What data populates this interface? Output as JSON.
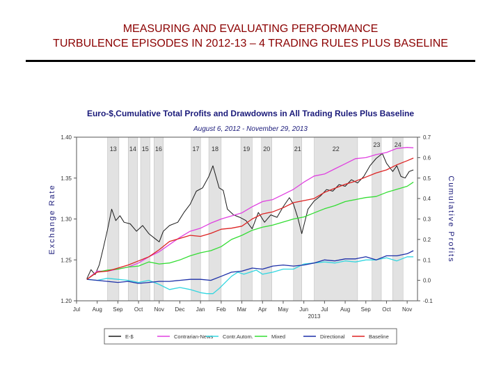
{
  "slide": {
    "title_line1": "MEASURING AND EVALUATING PERFORMANCE",
    "title_line2": "TURBULENCE EPISODES IN 2012-13 – 4 TRADING RULES PLUS BASELINE"
  },
  "chart_data": {
    "type": "line",
    "title": "Euro-$,Cumulative Total Profits and Drawdowns in All Trading Rules Plus Baseline",
    "subtitle": "August 6, 2012 - November 29, 2013",
    "ylabel": "Exchange Rate",
    "y2label": "Cumulative Profits",
    "ylim": [
      1.2,
      1.4
    ],
    "y2lim": [
      -0.1,
      0.7
    ],
    "yticks": [
      "1.20",
      "1.25",
      "1.30",
      "1.35",
      "1.40"
    ],
    "y2ticks": [
      "-0.1",
      "0.0",
      "0.1",
      "0.2",
      "0.3",
      "0.4",
      "0.5",
      "0.6",
      "0.7"
    ],
    "xlim": [
      0,
      16.5
    ],
    "xticks": [
      {
        "x": 0,
        "label": "Jul"
      },
      {
        "x": 1,
        "label": "Aug"
      },
      {
        "x": 2,
        "label": "Sep"
      },
      {
        "x": 3,
        "label": "Oct"
      },
      {
        "x": 4,
        "label": "Nov"
      },
      {
        "x": 5,
        "label": "Dec"
      },
      {
        "x": 6,
        "label": "Jan"
      },
      {
        "x": 7,
        "label": "Feb"
      },
      {
        "x": 8,
        "label": "Mar"
      },
      {
        "x": 9,
        "label": "Apr"
      },
      {
        "x": 10,
        "label": "May"
      },
      {
        "x": 11,
        "label": "Jun"
      },
      {
        "x": 12,
        "label": "Jul"
      },
      {
        "x": 13,
        "label": "Aug"
      },
      {
        "x": 14,
        "label": "Sep"
      },
      {
        "x": 15,
        "label": "Oct"
      },
      {
        "x": 16,
        "label": "Nov"
      }
    ],
    "year_label": {
      "x": 11.5,
      "label": "2013"
    },
    "episodes": [
      {
        "label": "13",
        "start": 1.5,
        "end": 2.05
      },
      {
        "label": "14",
        "start": 2.5,
        "end": 2.95
      },
      {
        "label": "15",
        "start": 3.1,
        "end": 3.55
      },
      {
        "label": "16",
        "start": 3.75,
        "end": 4.2
      },
      {
        "label": "17",
        "start": 5.55,
        "end": 6.0
      },
      {
        "label": "18",
        "start": 6.4,
        "end": 7.0
      },
      {
        "label": "19",
        "start": 7.95,
        "end": 8.5
      },
      {
        "label": "20",
        "start": 8.95,
        "end": 9.45
      },
      {
        "label": "21",
        "start": 10.5,
        "end": 10.9
      },
      {
        "label": "22",
        "start": 11.5,
        "end": 13.6
      },
      {
        "label": "23",
        "start": 14.3,
        "end": 14.75
      },
      {
        "label": "24",
        "start": 15.3,
        "end": 15.8
      }
    ],
    "legend_position": "bottom",
    "series": [
      {
        "name": "E-$",
        "color": "#1a1a1a",
        "axis": "left",
        "points": [
          [
            0.5,
            1.227
          ],
          [
            0.7,
            1.238
          ],
          [
            0.9,
            1.232
          ],
          [
            1.1,
            1.244
          ],
          [
            1.3,
            1.265
          ],
          [
            1.5,
            1.287
          ],
          [
            1.7,
            1.312
          ],
          [
            1.9,
            1.298
          ],
          [
            2.1,
            1.304
          ],
          [
            2.3,
            1.296
          ],
          [
            2.6,
            1.294
          ],
          [
            2.9,
            1.285
          ],
          [
            3.2,
            1.292
          ],
          [
            3.5,
            1.282
          ],
          [
            3.8,
            1.276
          ],
          [
            4.0,
            1.272
          ],
          [
            4.2,
            1.285
          ],
          [
            4.5,
            1.292
          ],
          [
            4.9,
            1.296
          ],
          [
            5.2,
            1.308
          ],
          [
            5.5,
            1.318
          ],
          [
            5.8,
            1.334
          ],
          [
            6.1,
            1.338
          ],
          [
            6.4,
            1.352
          ],
          [
            6.6,
            1.365
          ],
          [
            6.9,
            1.338
          ],
          [
            7.1,
            1.335
          ],
          [
            7.3,
            1.312
          ],
          [
            7.6,
            1.305
          ],
          [
            7.9,
            1.302
          ],
          [
            8.2,
            1.298
          ],
          [
            8.5,
            1.288
          ],
          [
            8.8,
            1.308
          ],
          [
            9.1,
            1.296
          ],
          [
            9.4,
            1.305
          ],
          [
            9.7,
            1.302
          ],
          [
            10.0,
            1.315
          ],
          [
            10.3,
            1.326
          ],
          [
            10.5,
            1.318
          ],
          [
            10.7,
            1.302
          ],
          [
            10.9,
            1.282
          ],
          [
            11.2,
            1.312
          ],
          [
            11.5,
            1.322
          ],
          [
            11.8,
            1.328
          ],
          [
            12.1,
            1.336
          ],
          [
            12.4,
            1.334
          ],
          [
            12.7,
            1.342
          ],
          [
            13.0,
            1.34
          ],
          [
            13.3,
            1.348
          ],
          [
            13.6,
            1.344
          ],
          [
            13.9,
            1.352
          ],
          [
            14.2,
            1.365
          ],
          [
            14.5,
            1.374
          ],
          [
            14.8,
            1.38
          ],
          [
            15.0,
            1.368
          ],
          [
            15.3,
            1.358
          ],
          [
            15.5,
            1.365
          ],
          [
            15.7,
            1.352
          ],
          [
            15.9,
            1.35
          ],
          [
            16.1,
            1.358
          ],
          [
            16.3,
            1.36
          ]
        ]
      },
      {
        "name": "Contrarian-News",
        "color": "#e040e0",
        "axis": "right",
        "points": [
          [
            0.5,
            0.005
          ],
          [
            1.0,
            0.045
          ],
          [
            1.5,
            0.045
          ],
          [
            2.0,
            0.055
          ],
          [
            2.5,
            0.065
          ],
          [
            3.0,
            0.085
          ],
          [
            3.5,
            0.115
          ],
          [
            4.0,
            0.14
          ],
          [
            4.5,
            0.175
          ],
          [
            5.0,
            0.21
          ],
          [
            5.5,
            0.24
          ],
          [
            6.0,
            0.255
          ],
          [
            6.5,
            0.28
          ],
          [
            7.0,
            0.3
          ],
          [
            7.5,
            0.315
          ],
          [
            8.0,
            0.33
          ],
          [
            8.5,
            0.36
          ],
          [
            9.0,
            0.385
          ],
          [
            9.5,
            0.395
          ],
          [
            10.0,
            0.42
          ],
          [
            10.5,
            0.445
          ],
          [
            11.0,
            0.48
          ],
          [
            11.5,
            0.51
          ],
          [
            12.0,
            0.52
          ],
          [
            12.5,
            0.545
          ],
          [
            13.0,
            0.57
          ],
          [
            13.5,
            0.595
          ],
          [
            14.0,
            0.6
          ],
          [
            14.5,
            0.615
          ],
          [
            15.0,
            0.625
          ],
          [
            15.5,
            0.645
          ],
          [
            16.0,
            0.65
          ],
          [
            16.3,
            0.648
          ]
        ]
      },
      {
        "name": "Contr.Autom.",
        "color": "#33d6e0",
        "axis": "right",
        "points": [
          [
            0.5,
            0.005
          ],
          [
            1.0,
            0.0
          ],
          [
            1.5,
            0.01
          ],
          [
            2.0,
            0.005
          ],
          [
            2.5,
            0.0
          ],
          [
            3.0,
            -0.01
          ],
          [
            3.5,
            0.0
          ],
          [
            4.0,
            -0.02
          ],
          [
            4.5,
            -0.045
          ],
          [
            5.0,
            -0.035
          ],
          [
            5.5,
            -0.045
          ],
          [
            6.0,
            -0.06
          ],
          [
            6.3,
            -0.065
          ],
          [
            6.6,
            -0.065
          ],
          [
            6.9,
            -0.04
          ],
          [
            7.2,
            -0.01
          ],
          [
            7.5,
            0.02
          ],
          [
            7.8,
            0.04
          ],
          [
            8.1,
            0.03
          ],
          [
            8.4,
            0.04
          ],
          [
            8.7,
            0.05
          ],
          [
            9.0,
            0.03
          ],
          [
            9.5,
            0.04
          ],
          [
            10.0,
            0.055
          ],
          [
            10.5,
            0.055
          ],
          [
            11.0,
            0.08
          ],
          [
            11.5,
            0.085
          ],
          [
            12.0,
            0.09
          ],
          [
            12.5,
            0.085
          ],
          [
            13.0,
            0.095
          ],
          [
            13.5,
            0.09
          ],
          [
            14.0,
            0.1
          ],
          [
            14.5,
            0.1
          ],
          [
            15.0,
            0.11
          ],
          [
            15.5,
            0.095
          ],
          [
            16.0,
            0.115
          ],
          [
            16.3,
            0.115
          ]
        ]
      },
      {
        "name": "Mixed",
        "color": "#33dd33",
        "axis": "right",
        "points": [
          [
            0.5,
            0.005
          ],
          [
            1.0,
            0.04
          ],
          [
            1.5,
            0.05
          ],
          [
            2.0,
            0.055
          ],
          [
            2.5,
            0.065
          ],
          [
            3.0,
            0.07
          ],
          [
            3.5,
            0.09
          ],
          [
            4.0,
            0.08
          ],
          [
            4.5,
            0.085
          ],
          [
            5.0,
            0.1
          ],
          [
            5.5,
            0.12
          ],
          [
            6.0,
            0.135
          ],
          [
            6.5,
            0.145
          ],
          [
            7.0,
            0.165
          ],
          [
            7.5,
            0.2
          ],
          [
            8.0,
            0.22
          ],
          [
            8.5,
            0.245
          ],
          [
            9.0,
            0.26
          ],
          [
            9.5,
            0.27
          ],
          [
            10.0,
            0.285
          ],
          [
            10.5,
            0.3
          ],
          [
            11.0,
            0.31
          ],
          [
            11.5,
            0.33
          ],
          [
            12.0,
            0.35
          ],
          [
            12.5,
            0.365
          ],
          [
            13.0,
            0.385
          ],
          [
            13.5,
            0.395
          ],
          [
            14.0,
            0.405
          ],
          [
            14.5,
            0.41
          ],
          [
            15.0,
            0.43
          ],
          [
            15.5,
            0.445
          ],
          [
            16.0,
            0.46
          ],
          [
            16.3,
            0.48
          ]
        ]
      },
      {
        "name": "Directional",
        "color": "#1c2fa8",
        "axis": "right",
        "points": [
          [
            0.5,
            0.005
          ],
          [
            1.0,
            0.0
          ],
          [
            1.5,
            -0.005
          ],
          [
            2.0,
            -0.01
          ],
          [
            2.5,
            -0.005
          ],
          [
            3.0,
            -0.015
          ],
          [
            3.5,
            -0.01
          ],
          [
            4.0,
            -0.005
          ],
          [
            4.5,
            -0.005
          ],
          [
            5.0,
            0.0
          ],
          [
            5.5,
            0.005
          ],
          [
            6.0,
            0.005
          ],
          [
            6.5,
            0.0
          ],
          [
            7.0,
            0.02
          ],
          [
            7.5,
            0.04
          ],
          [
            8.0,
            0.045
          ],
          [
            8.5,
            0.06
          ],
          [
            9.0,
            0.055
          ],
          [
            9.5,
            0.07
          ],
          [
            10.0,
            0.075
          ],
          [
            10.5,
            0.07
          ],
          [
            11.0,
            0.075
          ],
          [
            11.5,
            0.085
          ],
          [
            12.0,
            0.1
          ],
          [
            12.5,
            0.095
          ],
          [
            13.0,
            0.105
          ],
          [
            13.5,
            0.105
          ],
          [
            14.0,
            0.115
          ],
          [
            14.5,
            0.1
          ],
          [
            15.0,
            0.12
          ],
          [
            15.5,
            0.12
          ],
          [
            16.0,
            0.13
          ],
          [
            16.3,
            0.145
          ]
        ]
      },
      {
        "name": "Baseline",
        "color": "#dd2222",
        "axis": "right",
        "points": [
          [
            0.5,
            0.005
          ],
          [
            1.0,
            0.04
          ],
          [
            1.5,
            0.045
          ],
          [
            2.0,
            0.06
          ],
          [
            2.5,
            0.075
          ],
          [
            3.0,
            0.095
          ],
          [
            3.5,
            0.115
          ],
          [
            4.0,
            0.15
          ],
          [
            4.5,
            0.19
          ],
          [
            5.0,
            0.205
          ],
          [
            5.5,
            0.22
          ],
          [
            6.0,
            0.215
          ],
          [
            6.5,
            0.23
          ],
          [
            7.0,
            0.25
          ],
          [
            7.5,
            0.255
          ],
          [
            8.0,
            0.265
          ],
          [
            8.5,
            0.3
          ],
          [
            9.0,
            0.325
          ],
          [
            9.5,
            0.335
          ],
          [
            10.0,
            0.355
          ],
          [
            10.5,
            0.38
          ],
          [
            11.0,
            0.39
          ],
          [
            11.5,
            0.4
          ],
          [
            12.0,
            0.43
          ],
          [
            12.5,
            0.45
          ],
          [
            13.0,
            0.47
          ],
          [
            13.5,
            0.485
          ],
          [
            14.0,
            0.505
          ],
          [
            14.5,
            0.525
          ],
          [
            15.0,
            0.54
          ],
          [
            15.5,
            0.565
          ],
          [
            16.0,
            0.585
          ],
          [
            16.3,
            0.598
          ]
        ]
      }
    ]
  }
}
